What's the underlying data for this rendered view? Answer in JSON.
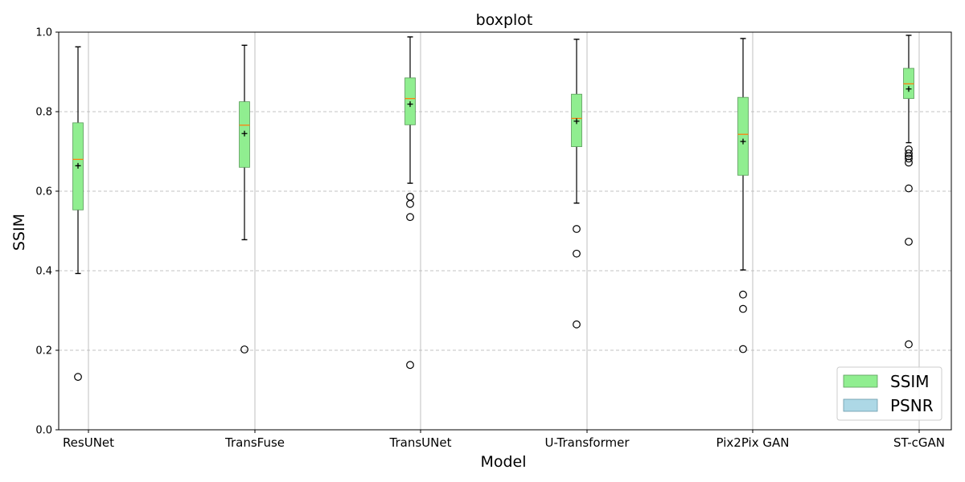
{
  "chart_data": {
    "type": "boxplot",
    "title": "boxplot",
    "xlabel": "Model",
    "ylabel": "SSIM",
    "ylim": [
      0.0,
      1.0
    ],
    "yticks": [
      "0.0",
      "0.2",
      "0.4",
      "0.6",
      "0.8",
      "1.0"
    ],
    "y_grid": true,
    "x_grid": true,
    "legend_position": "lower right",
    "legend": [
      {
        "name": "SSIM",
        "color": "#90ee90"
      },
      {
        "name": "PSNR",
        "color": "#add8e6"
      }
    ],
    "colors": {
      "box_fill": "#90ee90",
      "box_edge": "#5a9a5a",
      "median": "#ff7f0e",
      "mean_marker": "#000000"
    },
    "categories": [
      "ResUNet",
      "TransFuse",
      "TransUNet",
      "U-Transformer",
      "Pix2Pix GAN",
      "ST-cGAN"
    ],
    "boxes": [
      {
        "name": "ResUNet",
        "whisker_low": 0.393,
        "q1": 0.553,
        "median": 0.68,
        "q3": 0.772,
        "whisker_high": 0.963,
        "mean": 0.664,
        "outliers": [
          0.133
        ]
      },
      {
        "name": "TransFuse",
        "whisker_low": 0.478,
        "q1": 0.66,
        "median": 0.766,
        "q3": 0.825,
        "whisker_high": 0.967,
        "mean": 0.745,
        "outliers": [
          0.202
        ]
      },
      {
        "name": "TransUNet",
        "whisker_low": 0.62,
        "q1": 0.767,
        "median": 0.833,
        "q3": 0.885,
        "whisker_high": 0.988,
        "mean": 0.819,
        "outliers": [
          0.586,
          0.568,
          0.535,
          0.163
        ]
      },
      {
        "name": "U-Transformer",
        "whisker_low": 0.57,
        "q1": 0.712,
        "median": 0.783,
        "q3": 0.844,
        "whisker_high": 0.982,
        "mean": 0.776,
        "outliers": [
          0.505,
          0.443,
          0.265
        ]
      },
      {
        "name": "Pix2Pix GAN",
        "whisker_low": 0.402,
        "q1": 0.64,
        "median": 0.743,
        "q3": 0.836,
        "whisker_high": 0.984,
        "mean": 0.725,
        "outliers": [
          0.34,
          0.304,
          0.203
        ]
      },
      {
        "name": "ST-cGAN",
        "whisker_low": 0.722,
        "q1": 0.833,
        "median": 0.87,
        "q3": 0.909,
        "whisker_high": 0.992,
        "mean": 0.857,
        "outliers": [
          0.705,
          0.695,
          0.688,
          0.682,
          0.672,
          0.607,
          0.473,
          0.215
        ]
      }
    ]
  }
}
